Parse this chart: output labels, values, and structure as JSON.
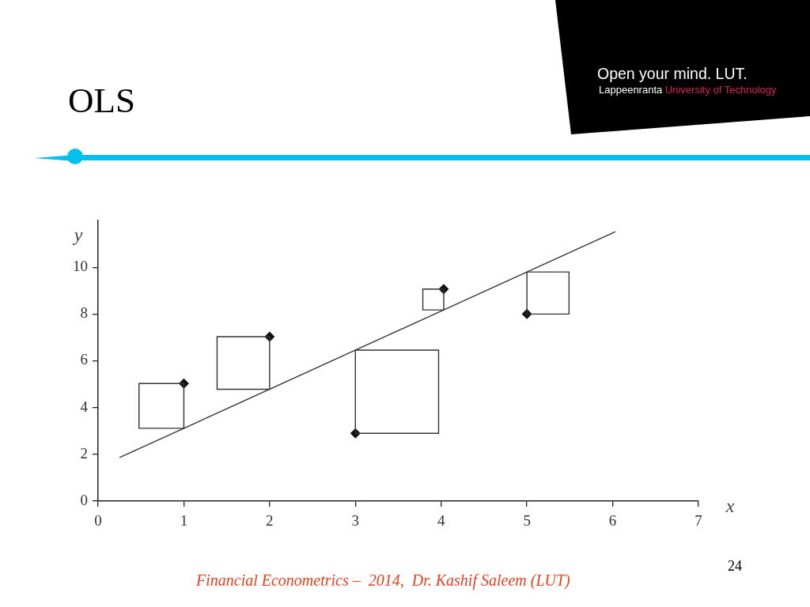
{
  "chart_data": {
    "type": "scatter",
    "title": "OLS",
    "xlabel": "x",
    "ylabel": "y",
    "xlim": [
      0,
      7
    ],
    "xticks": [
      0,
      1,
      2,
      3,
      4,
      5,
      6,
      7
    ],
    "ylim": [
      0,
      12
    ],
    "yticks": [
      0,
      2,
      4,
      6,
      8,
      10
    ],
    "grid": false,
    "legend": false,
    "series": [
      {
        "type": "scatter",
        "marker": "diamond",
        "color": "#111111",
        "x": [
          1,
          2,
          3,
          4.03,
          5
        ],
        "values": [
          5.03,
          7.03,
          2.9,
          9.07,
          8.0
        ]
      },
      {
        "type": "line",
        "color": "#333333",
        "x": [
          0.25,
          6.03
        ],
        "values": [
          1.86,
          11.52
        ]
      }
    ],
    "annotations": [
      "Open your mind. LUT.",
      "Lappeenranta University of Technology",
      "Financial Econometrics –  2014,  Dr. Kashif Saleem (LUT)",
      "24"
    ]
  }
}
